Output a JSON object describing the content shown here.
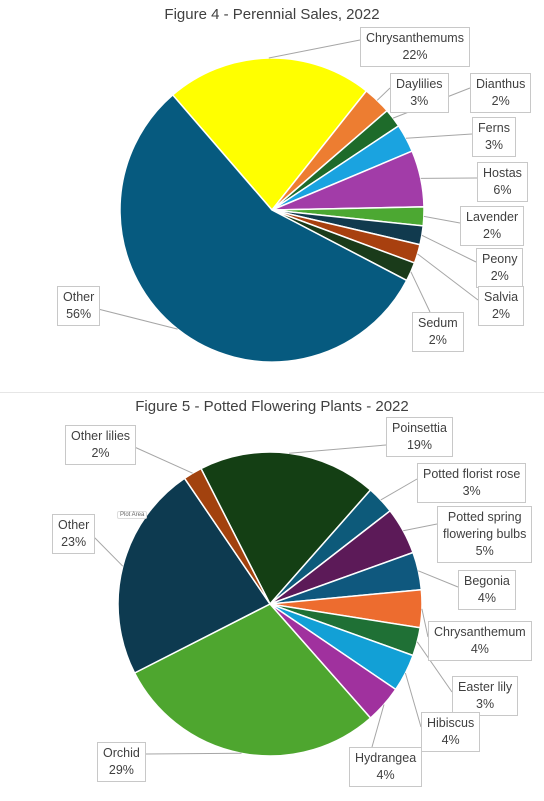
{
  "chart_data": [
    {
      "type": "pie",
      "title": "Figure 4 - Perennial Sales, 2022",
      "categories": [
        "Chrysanthemums",
        "Daylilies",
        "Dianthus",
        "Ferns",
        "Hostas",
        "Lavender",
        "Peony",
        "Salvia",
        "Sedum",
        "Other"
      ],
      "values": [
        22,
        3,
        2,
        3,
        6,
        2,
        2,
        2,
        2,
        56
      ],
      "value_labels": [
        "22%",
        "3%",
        "2%",
        "3%",
        "6%",
        "2%",
        "2%",
        "2%",
        "2%",
        "56%"
      ],
      "colors": [
        "#ffff00",
        "#ed7d31",
        "#1e6b2a",
        "#1aa3e0",
        "#a23ca8",
        "#4ca832",
        "#113a4e",
        "#a8400f",
        "#1a3b1a",
        "#065a7f"
      ]
    },
    {
      "type": "pie",
      "title": "Figure 5 - Potted Flowering Plants - 2022",
      "categories": [
        "Poinsettia",
        "Potted florist rose",
        "Potted spring flowering bulbs",
        "Begonia",
        "Chrysanthemum",
        "Easter lily",
        "Hibiscus",
        "Hydrangea",
        "Orchid",
        "Other",
        "Other lilies"
      ],
      "values": [
        19,
        3,
        5,
        4,
        4,
        3,
        4,
        4,
        29,
        23,
        2
      ],
      "value_labels": [
        "19%",
        "3%",
        "5%",
        "4%",
        "4%",
        "3%",
        "4%",
        "4%",
        "29%",
        "23%",
        "2%"
      ],
      "colors": [
        "#143f14",
        "#0d5a7a",
        "#5c1a58",
        "#0f587e",
        "#ed6c2f",
        "#1f7035",
        "#12a0d6",
        "#a0319e",
        "#4ea62f",
        "#0d3a50",
        "#a2420e"
      ],
      "plot_area_tag": "Plot Area"
    }
  ]
}
